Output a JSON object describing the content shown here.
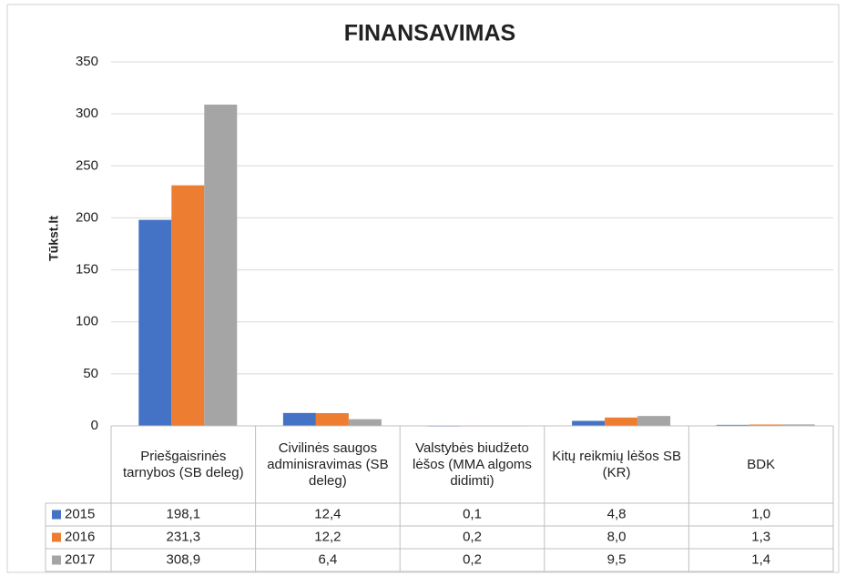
{
  "chart_data": {
    "type": "bar",
    "title": "FINANSAVIMAS",
    "y_label": "Tūkst.lt",
    "categories": [
      "Priešgaisrinės tarnybos (SB deleg)",
      "Civilinės saugos adminisravimas (SB deleg)",
      "Valstybės biudžeto lėšos (MMA algoms didimti)",
      "Kitų reikmių lėšos SB (KR)",
      "BDK"
    ],
    "series": [
      {
        "name": "2015",
        "color": "#4472c4",
        "values": [
          198.1,
          12.4,
          0.1,
          4.8,
          1.0
        ],
        "value_labels": [
          "198,1",
          "12,4",
          "0,1",
          "4,8",
          "1,0"
        ]
      },
      {
        "name": "2016",
        "color": "#ed7d31",
        "values": [
          231.3,
          12.2,
          0.2,
          8.0,
          1.3
        ],
        "value_labels": [
          "231,3",
          "12,2",
          "0,2",
          "8,0",
          "1,3"
        ]
      },
      {
        "name": "2017",
        "color": "#a5a5a5",
        "values": [
          308.9,
          6.4,
          0.2,
          9.5,
          1.4
        ],
        "value_labels": [
          "308,9",
          "6,4",
          "0,2",
          "9,5",
          "1,4"
        ]
      }
    ],
    "ylim": [
      0,
      350
    ],
    "yticks": [
      0,
      50,
      100,
      150,
      200,
      250,
      300,
      350
    ],
    "grid": true,
    "data_table": true
  }
}
